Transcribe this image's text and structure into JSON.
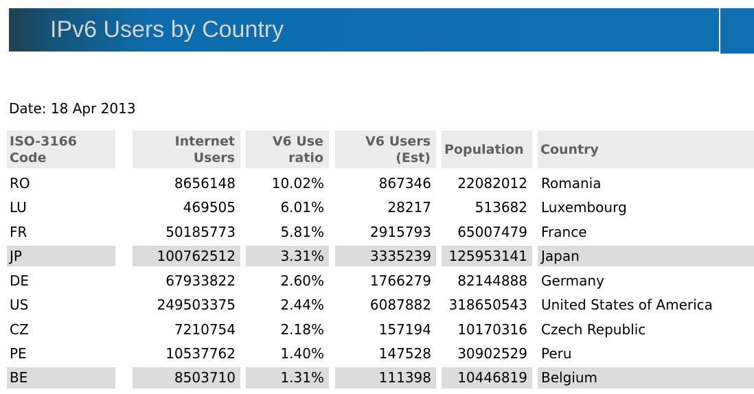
{
  "page": {
    "title": "IPv6 Users by Country",
    "date": "Date: 18 Apr 2013"
  },
  "colors": {
    "banner_blue": "#0e70b2",
    "banner_dark_edge": "#20404f",
    "banner_title_text": "#d6d6d6",
    "header_bg": "#ececec",
    "header_text": "#5f5f5f",
    "highlight_row_bg": "#dcdcdc",
    "data_text": "#000000"
  },
  "table": {
    "columns": [
      {
        "id": "iso_code",
        "line1": "ISO-3166",
        "line2": "Code"
      },
      {
        "id": "internet_users",
        "line1": "Internet",
        "line2": "Users"
      },
      {
        "id": "v6_use_ratio",
        "line1": "V6 Use",
        "line2": "ratio"
      },
      {
        "id": "v6_users_est",
        "line1": "V6 Users",
        "line2": "(Est)"
      },
      {
        "id": "population",
        "line1": "Population",
        "line2": ""
      },
      {
        "id": "country",
        "line1": "Country",
        "line2": ""
      }
    ],
    "rows": [
      {
        "code": "RO",
        "internet_users": "8656148",
        "v6_ratio": "10.02%",
        "v6_users": "867346",
        "population": "22082012",
        "country": "Romania",
        "highlighted": false
      },
      {
        "code": "LU",
        "internet_users": "469505",
        "v6_ratio": "6.01%",
        "v6_users": "28217",
        "population": "513682",
        "country": "Luxembourg",
        "highlighted": false
      },
      {
        "code": "FR",
        "internet_users": "50185773",
        "v6_ratio": "5.81%",
        "v6_users": "2915793",
        "population": "65007479",
        "country": "France",
        "highlighted": false
      },
      {
        "code": "JP",
        "internet_users": "100762512",
        "v6_ratio": "3.31%",
        "v6_users": "3335239",
        "population": "125953141",
        "country": "Japan",
        "highlighted": true
      },
      {
        "code": "DE",
        "internet_users": "67933822",
        "v6_ratio": "2.60%",
        "v6_users": "1766279",
        "population": "82144888",
        "country": "Germany",
        "highlighted": false
      },
      {
        "code": "US",
        "internet_users": "249503375",
        "v6_ratio": "2.44%",
        "v6_users": "6087882",
        "population": "318650543",
        "country": "United States of America",
        "highlighted": false
      },
      {
        "code": "CZ",
        "internet_users": "7210754",
        "v6_ratio": "2.18%",
        "v6_users": "157194",
        "population": "10170316",
        "country": "Czech Republic",
        "highlighted": false
      },
      {
        "code": "PE",
        "internet_users": "10537762",
        "v6_ratio": "1.40%",
        "v6_users": "147528",
        "population": "30902529",
        "country": "Peru",
        "highlighted": false
      },
      {
        "code": "BE",
        "internet_users": "8503710",
        "v6_ratio": "1.31%",
        "v6_users": "111398",
        "population": "10446819",
        "country": "Belgium",
        "highlighted": true
      }
    ]
  }
}
